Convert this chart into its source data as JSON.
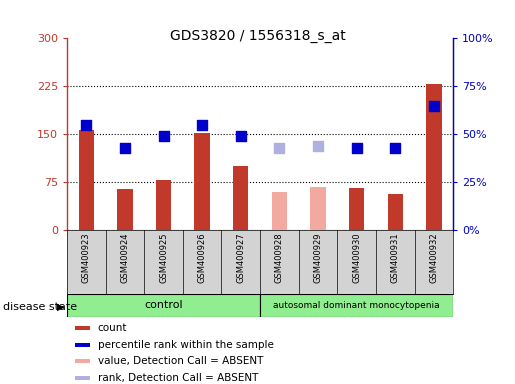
{
  "title": "GDS3820 / 1556318_s_at",
  "samples": [
    "GSM400923",
    "GSM400924",
    "GSM400925",
    "GSM400926",
    "GSM400927",
    "GSM400928",
    "GSM400929",
    "GSM400930",
    "GSM400931",
    "GSM400932"
  ],
  "bar_values": [
    157,
    65,
    78,
    152,
    100,
    null,
    null,
    67,
    57,
    228
  ],
  "bar_values_absent": [
    null,
    null,
    null,
    null,
    null,
    60,
    68,
    null,
    null,
    null
  ],
  "percentile_values": [
    55,
    43,
    49,
    55,
    49,
    null,
    null,
    43,
    43,
    65
  ],
  "percentile_absent": [
    null,
    null,
    null,
    null,
    null,
    43,
    44,
    null,
    null,
    null
  ],
  "bar_color_present": "#c0392b",
  "bar_color_absent": "#f1a9a0",
  "dot_color_present": "#0000cc",
  "dot_color_absent": "#b0b0e0",
  "ylim_left": [
    0,
    300
  ],
  "ylim_right": [
    0,
    100
  ],
  "yticks_left": [
    0,
    75,
    150,
    225,
    300
  ],
  "yticks_right": [
    0,
    25,
    50,
    75,
    100
  ],
  "ytick_labels_left": [
    "0",
    "75",
    "150",
    "225",
    "300"
  ],
  "ytick_labels_right": [
    "0%",
    "25%",
    "50%",
    "75%",
    "100%"
  ],
  "n_control": 5,
  "n_disease": 5,
  "group_control_label": "control",
  "group_disease_label": "autosomal dominant monocytopenia",
  "group_color": "#90ee90",
  "disease_state_label": "disease state",
  "legend_items": [
    {
      "label": "count",
      "color": "#c0392b"
    },
    {
      "label": "percentile rank within the sample",
      "color": "#0000cc"
    },
    {
      "label": "value, Detection Call = ABSENT",
      "color": "#f1a9a0"
    },
    {
      "label": "rank, Detection Call = ABSENT",
      "color": "#b0b0e0"
    }
  ],
  "bar_width": 0.4,
  "dot_size": 55,
  "sample_bg_color": "#d3d3d3",
  "plot_bg_color": "#ffffff",
  "grid_ticks": [
    75,
    150,
    225
  ]
}
